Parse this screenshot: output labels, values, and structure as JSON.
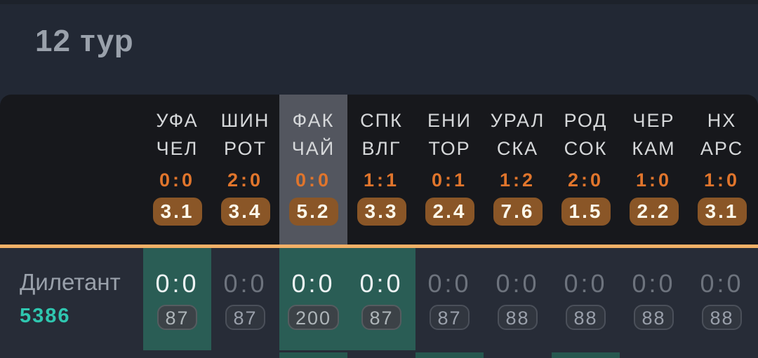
{
  "page": {
    "title": "12 тур",
    "colors": {
      "background": "#222834",
      "board_background": "#17181c",
      "column_highlight": "#53565f",
      "divider_orange": "#f2b067",
      "score_orange": "#e0752c",
      "odds_badge_brown": "#8a5627",
      "cell_highlight_teal": "#2a5d55",
      "player_id_teal": "#2fc7b0"
    }
  },
  "header": {
    "matches": [
      {
        "home": "УФА",
        "away": "ЧЕЛ",
        "score": "0:0",
        "odds": "3.1",
        "column_highlighted": false
      },
      {
        "home": "ШИН",
        "away": "РОТ",
        "score": "2:0",
        "odds": "3.4",
        "column_highlighted": false
      },
      {
        "home": "ФАК",
        "away": "ЧАЙ",
        "score": "0:0",
        "odds": "5.2",
        "column_highlighted": true
      },
      {
        "home": "СПК",
        "away": "ВЛГ",
        "score": "1:1",
        "odds": "3.3",
        "column_highlighted": false
      },
      {
        "home": "ЕНИ",
        "away": "ТОР",
        "score": "0:1",
        "odds": "2.4",
        "column_highlighted": false
      },
      {
        "home": "УРАЛ",
        "away": "СКА",
        "score": "1:2",
        "odds": "7.6",
        "column_highlighted": false
      },
      {
        "home": "РОД",
        "away": "СОК",
        "score": "2:0",
        "odds": "1.5",
        "column_highlighted": false
      },
      {
        "home": "ЧЕР",
        "away": "КАМ",
        "score": "1:0",
        "odds": "2.2",
        "column_highlighted": false
      },
      {
        "home": "НХ",
        "away": "АРС",
        "score": "1:0",
        "odds": "3.1",
        "column_highlighted": false
      }
    ]
  },
  "player": {
    "name": "Дилетант",
    "id": "5386",
    "predictions": [
      {
        "score": "0:0",
        "points": "87",
        "highlighted": true
      },
      {
        "score": "0:0",
        "points": "87",
        "highlighted": false
      },
      {
        "score": "0:0",
        "points": "200",
        "highlighted": true
      },
      {
        "score": "0:0",
        "points": "87",
        "highlighted": true
      },
      {
        "score": "0:0",
        "points": "87",
        "highlighted": false
      },
      {
        "score": "0:0",
        "points": "88",
        "highlighted": false
      },
      {
        "score": "0:0",
        "points": "88",
        "highlighted": false
      },
      {
        "score": "0:0",
        "points": "88",
        "highlighted": false
      },
      {
        "score": "0:0",
        "points": "88",
        "highlighted": false
      }
    ]
  },
  "next_row_partial": {
    "highlighted_column_indexes": [
      2,
      4,
      6
    ]
  }
}
